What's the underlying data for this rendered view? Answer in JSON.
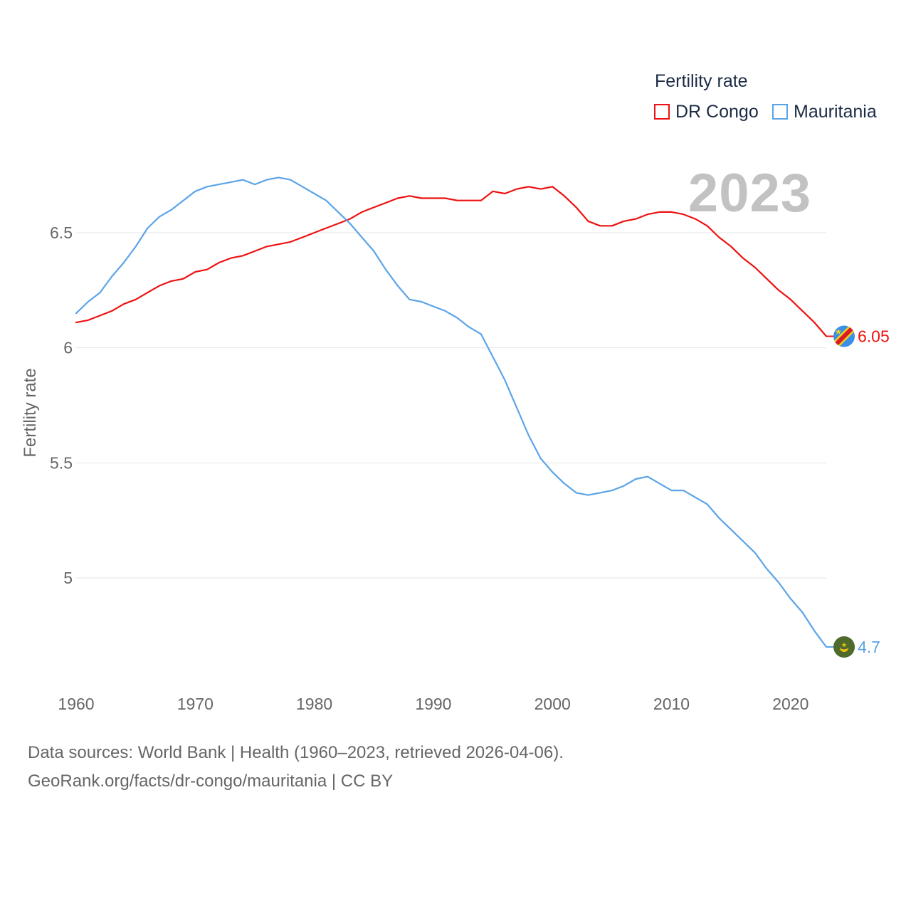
{
  "legend": {
    "title": "Fertility rate",
    "items": [
      {
        "name": "DR Congo",
        "color": "#ee1111"
      },
      {
        "name": "Mauritania",
        "color": "#5ba4e8"
      }
    ]
  },
  "current_year": "2023",
  "footer": {
    "line1": "Data sources: World Bank | Health (1960–2023, retrieved 2026-04-06).",
    "line2": "GeoRank.org/facts/dr-congo/mauritania | CC BY"
  },
  "chart_data": {
    "type": "line",
    "title": "Fertility rate",
    "xlabel": "",
    "ylabel": "Fertility rate",
    "xlim": [
      1960,
      2023
    ],
    "ylim": [
      4.6,
      6.9
    ],
    "x_ticks": [
      1960,
      1970,
      1980,
      1990,
      2000,
      2010,
      2020
    ],
    "y_ticks": [
      5,
      5.5,
      6,
      6.5
    ],
    "y_tick_labels": [
      "5",
      "5.5",
      "6",
      "6.5"
    ],
    "grid": true,
    "legend_position": "top-right",
    "x": [
      1960,
      1961,
      1962,
      1963,
      1964,
      1965,
      1966,
      1967,
      1968,
      1969,
      1970,
      1971,
      1972,
      1973,
      1974,
      1975,
      1976,
      1977,
      1978,
      1979,
      1980,
      1981,
      1982,
      1983,
      1984,
      1985,
      1986,
      1987,
      1988,
      1989,
      1990,
      1991,
      1992,
      1993,
      1994,
      1995,
      1996,
      1997,
      1998,
      1999,
      2000,
      2001,
      2002,
      2003,
      2004,
      2005,
      2006,
      2007,
      2008,
      2009,
      2010,
      2011,
      2012,
      2013,
      2014,
      2015,
      2016,
      2017,
      2018,
      2019,
      2020,
      2021,
      2022,
      2023
    ],
    "series": [
      {
        "name": "DR Congo",
        "color": "#ee1111",
        "end_label": "6.05",
        "values": [
          6.11,
          6.12,
          6.14,
          6.16,
          6.19,
          6.21,
          6.24,
          6.27,
          6.29,
          6.3,
          6.33,
          6.34,
          6.37,
          6.39,
          6.4,
          6.42,
          6.44,
          6.45,
          6.46,
          6.48,
          6.5,
          6.52,
          6.54,
          6.56,
          6.59,
          6.61,
          6.63,
          6.65,
          6.66,
          6.65,
          6.65,
          6.65,
          6.64,
          6.64,
          6.64,
          6.68,
          6.67,
          6.69,
          6.7,
          6.69,
          6.7,
          6.66,
          6.61,
          6.55,
          6.53,
          6.53,
          6.55,
          6.56,
          6.58,
          6.59,
          6.59,
          6.58,
          6.56,
          6.53,
          6.48,
          6.44,
          6.39,
          6.35,
          6.3,
          6.25,
          6.21,
          6.16,
          6.11,
          6.05
        ]
      },
      {
        "name": "Mauritania",
        "color": "#5ba4e8",
        "end_label": "4.7",
        "values": [
          6.15,
          6.2,
          6.24,
          6.31,
          6.37,
          6.44,
          6.52,
          6.57,
          6.6,
          6.64,
          6.68,
          6.7,
          6.71,
          6.72,
          6.73,
          6.71,
          6.73,
          6.74,
          6.73,
          6.7,
          6.67,
          6.64,
          6.59,
          6.54,
          6.48,
          6.42,
          6.34,
          6.27,
          6.21,
          6.2,
          6.18,
          6.16,
          6.13,
          6.09,
          6.06,
          5.96,
          5.86,
          5.74,
          5.62,
          5.52,
          5.46,
          5.41,
          5.37,
          5.36,
          5.37,
          5.38,
          5.4,
          5.43,
          5.44,
          5.41,
          5.38,
          5.38,
          5.35,
          5.32,
          5.26,
          5.21,
          5.16,
          5.11,
          5.04,
          4.98,
          4.91,
          4.85,
          4.77,
          4.7
        ]
      }
    ]
  }
}
